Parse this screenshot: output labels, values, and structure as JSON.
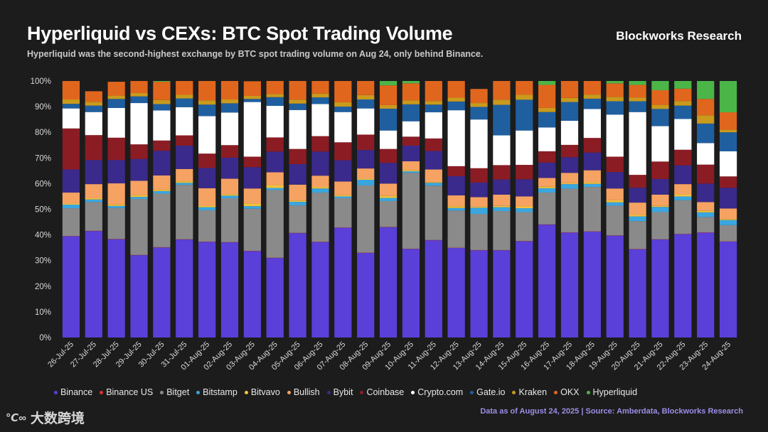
{
  "header": {
    "title": "Hyperliquid vs CEXs: BTC Spot Trading Volume",
    "subtitle": "Hyperliquid was the second-highest exchange by BTC spot trading volume on Aug 24, only behind Binance.",
    "brand": "Blockworks Research"
  },
  "footer": {
    "source": "Data as of August 24, 2025 | Source: Amberdata, Blockworks Research",
    "watermark_logo": "℃∞",
    "watermark_text": "大数跨境"
  },
  "colors": {
    "Binance": "#5a3fd8",
    "Binance US": "#d9342b",
    "Bitget": "#8a8a8a",
    "Bitstamp": "#3aa6e0",
    "Bitvavo": "#f2c23a",
    "Bullish": "#f5a262",
    "Bybit": "#3a2a8c",
    "Coinbase": "#8c1c24",
    "Crypto.com": "#ffffff",
    "Gate.io": "#1f5fa0",
    "Kraken": "#c99a1c",
    "OKX": "#e0661e",
    "Hyperliquid": "#4cb548"
  },
  "chart_data": {
    "type": "bar",
    "stacked": true,
    "title": "Hyperliquid vs CEXs: BTC Spot Trading Volume",
    "ylabel": "",
    "xlabel": "",
    "ylim": [
      0,
      100
    ],
    "yticks": [
      "0%",
      "10%",
      "20%",
      "30%",
      "40%",
      "50%",
      "60%",
      "70%",
      "80%",
      "90%",
      "100%"
    ],
    "categories": [
      "26-Jul-25",
      "27-Jul-25",
      "28-Jul-25",
      "29-Jul-25",
      "30-Jul-25",
      "31-Jul-25",
      "01-Aug-25",
      "02-Aug-25",
      "03-Aug-25",
      "04-Aug-25",
      "05-Aug-25",
      "06-Aug-25",
      "07-Aug-25",
      "08-Aug-25",
      "09-Aug-25",
      "10-Aug-25",
      "11-Aug-25",
      "12-Aug-25",
      "13-Aug-25",
      "14-Aug-25",
      "15-Aug-25",
      "16-Aug-25",
      "17-Aug-25",
      "18-Aug-25",
      "19-Aug-25",
      "20-Aug-25",
      "21-Aug-25",
      "22-Aug-25",
      "23-Aug-25",
      "24-Aug-25"
    ],
    "series": [
      {
        "name": "Binance",
        "values": [
          39.5,
          41.5,
          38.3,
          32.1,
          35.1,
          38.2,
          37.3,
          37.1,
          33.7,
          31.0,
          40.7,
          37.2,
          42.8,
          33.0,
          43.0,
          34.5,
          37.9,
          34.9,
          34.0,
          34.0,
          37.5,
          44.0,
          40.9,
          41.3,
          39.7,
          34.4,
          38.2,
          40.3,
          40.9,
          37.4
        ]
      },
      {
        "name": "Binance US",
        "values": [
          0.1,
          0.1,
          0.1,
          0.1,
          0.1,
          0.1,
          0.1,
          0.1,
          0.1,
          0.1,
          0.1,
          0.1,
          0.1,
          0.1,
          0.1,
          0.1,
          0.1,
          0.1,
          0.1,
          0.1,
          0.1,
          0.1,
          0.1,
          0.1,
          0.1,
          0.1,
          0.1,
          0.1,
          0.1,
          0.1
        ]
      },
      {
        "name": "Bitget",
        "values": [
          10.8,
          11.2,
          12.1,
          21.8,
          20.9,
          21.2,
          12.2,
          17.1,
          16.4,
          26.4,
          10.7,
          19.2,
          11.4,
          26.2,
          10.1,
          29.6,
          21.2,
          14.5,
          14.1,
          15.2,
          11.3,
          12.4,
          17.0,
          17.3,
          11.6,
          10.9,
          10.6,
          13.1,
          6.0,
          6.3
        ]
      },
      {
        "name": "Bitstamp",
        "values": [
          1.4,
          1.0,
          0.8,
          0.8,
          1.0,
          0.8,
          1.2,
          1.0,
          1.0,
          0.8,
          1.4,
          1.6,
          0.7,
          2.2,
          1.2,
          0.6,
          1.1,
          1.0,
          2.4,
          1.5,
          1.5,
          1.7,
          1.8,
          1.2,
          1.3,
          1.8,
          2.0,
          1.5,
          1.8,
          2.0
        ]
      },
      {
        "name": "Bitvavo",
        "values": [
          0.4,
          0.5,
          0.6,
          0.7,
          0.6,
          0.6,
          0.6,
          0.6,
          1.0,
          1.1,
          0.5,
          0.6,
          0.5,
          0.4,
          0.8,
          0.4,
          0.3,
          0.7,
          0.4,
          0.5,
          0.7,
          0.6,
          0.4,
          0.6,
          0.8,
          0.6,
          0.4,
          0.8,
          0.6,
          0.4
        ]
      },
      {
        "name": "Bullish",
        "values": [
          4.3,
          5.5,
          8.2,
          5.6,
          5.5,
          4.8,
          6.8,
          6.0,
          5.9,
          5.0,
          6.2,
          4.4,
          5.3,
          4.0,
          4.8,
          3.5,
          4.9,
          4.2,
          3.7,
          4.4,
          3.9,
          3.4,
          4.0,
          4.7,
          4.6,
          4.8,
          4.4,
          4.0,
          3.4,
          4.1
        ]
      },
      {
        "name": "Bybit",
        "values": [
          9.0,
          9.4,
          9.1,
          8.5,
          9.6,
          9.1,
          7.9,
          8.2,
          8.3,
          8.1,
          8.0,
          9.4,
          8.3,
          7.2,
          8.1,
          6.1,
          7.2,
          7.5,
          5.7,
          5.9,
          6.7,
          6.0,
          6.1,
          6.9,
          6.4,
          5.8,
          6.1,
          7.3,
          7.2,
          8.1
        ]
      },
      {
        "name": "Coinbase",
        "values": [
          16.0,
          9.7,
          8.7,
          5.7,
          4.0,
          4.0,
          5.6,
          4.9,
          4.1,
          5.5,
          5.9,
          6.0,
          7.0,
          6.0,
          5.4,
          3.5,
          4.9,
          3.9,
          5.6,
          5.6,
          5.6,
          4.4,
          4.8,
          5.7,
          6.0,
          5.0,
          6.8,
          6.1,
          7.4,
          4.4
        ]
      },
      {
        "name": "Crypto.com",
        "values": [
          7.8,
          9.0,
          11.6,
          16.1,
          11.7,
          11.0,
          14.6,
          12.7,
          21.3,
          12.3,
          15.2,
          12.5,
          11.8,
          10.2,
          7.2,
          6.0,
          10.2,
          21.8,
          19.0,
          11.6,
          13.4,
          9.3,
          9.4,
          11.3,
          16.4,
          24.5,
          13.8,
          12.0,
          8.4,
          9.8
        ]
      },
      {
        "name": "Gate.io",
        "values": [
          1.8,
          2.5,
          3.5,
          2.6,
          2.5,
          3.4,
          4.5,
          3.6,
          1.2,
          3.4,
          2.5,
          2.6,
          2.1,
          3.5,
          8.5,
          6.6,
          3.0,
          3.4,
          4.9,
          11.9,
          12.0,
          6.0,
          7.3,
          4.0,
          5.2,
          4.2,
          6.7,
          5.2,
          7.6,
          7.4
        ]
      },
      {
        "name": "Kraken",
        "values": [
          1.7,
          1.5,
          1.3,
          1.3,
          1.6,
          1.4,
          1.6,
          1.5,
          1.2,
          1.2,
          1.5,
          1.5,
          1.7,
          1.7,
          1.4,
          1.5,
          1.4,
          1.5,
          1.5,
          2.0,
          1.9,
          1.6,
          1.6,
          1.6,
          1.7,
          1.4,
          1.6,
          1.8,
          3.2,
          1.0
        ]
      },
      {
        "name": "OKX",
        "values": [
          7.2,
          4.1,
          5.4,
          4.7,
          7.1,
          5.4,
          7.6,
          7.2,
          5.7,
          5.1,
          7.3,
          4.9,
          8.3,
          5.5,
          7.7,
          6.7,
          7.8,
          6.5,
          5.5,
          7.3,
          5.4,
          9.0,
          6.6,
          5.3,
          5.3,
          5.0,
          5.7,
          4.8,
          6.4,
          6.8
        ]
      },
      {
        "name": "Hyperliquid",
        "values": [
          0.0,
          0.0,
          0.0,
          0.0,
          0.3,
          0.0,
          0.0,
          0.0,
          0.0,
          0.0,
          0.0,
          0.0,
          0.0,
          0.0,
          1.7,
          0.9,
          0.0,
          0.0,
          0.0,
          0.0,
          0.0,
          1.5,
          0.0,
          0.0,
          0.9,
          1.5,
          3.6,
          3.0,
          7.0,
          12.2
        ]
      }
    ],
    "legend_position": "bottom"
  }
}
